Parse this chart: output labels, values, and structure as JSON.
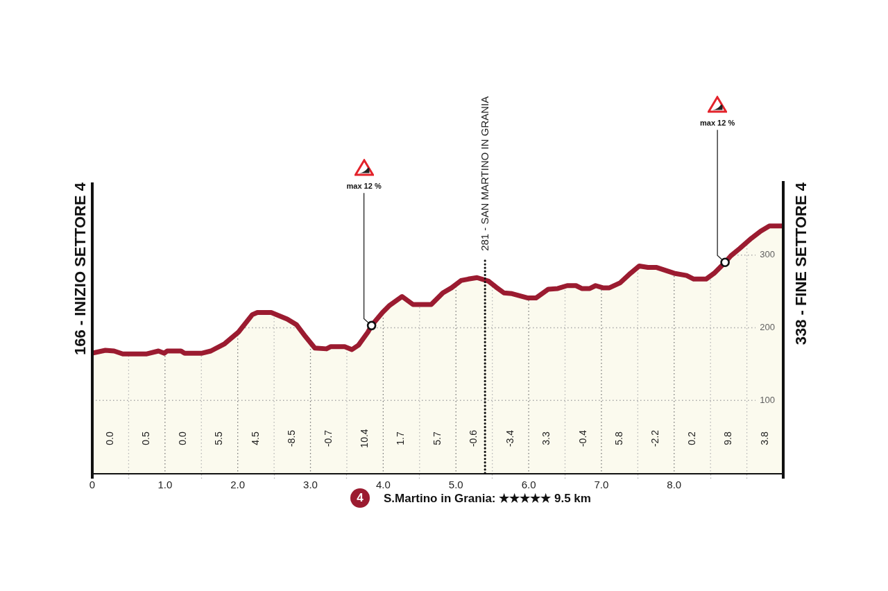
{
  "chart_data": {
    "type": "area",
    "title": "S.Martino in Grania: ★★★★★ 9.5 km",
    "x": [
      0,
      0.18,
      0.3,
      0.42,
      0.75,
      0.91,
      0.99,
      1.03,
      1.22,
      1.27,
      1.51,
      1.63,
      1.82,
      2.01,
      2.2,
      2.27,
      2.46,
      2.68,
      2.81,
      2.93,
      3.06,
      3.22,
      3.28,
      3.47,
      3.57,
      3.66,
      3.79,
      3.84,
      3.99,
      4.09,
      4.26,
      4.41,
      4.66,
      4.82,
      4.94,
      5.07,
      5.17,
      5.29,
      5.45,
      5.55,
      5.66,
      5.77,
      5.99,
      6.1,
      6.27,
      6.4,
      6.53,
      6.65,
      6.73,
      6.84,
      6.92,
      7.02,
      7.11,
      7.26,
      7.4,
      7.52,
      7.64,
      7.76,
      8.0,
      8.17,
      8.27,
      8.44,
      8.55,
      8.7,
      8.78,
      8.9,
      9.06,
      9.19,
      9.31,
      9.5
    ],
    "values": [
      165,
      169,
      168,
      164,
      164,
      168,
      165,
      168,
      168,
      165,
      165,
      168,
      178,
      194,
      218,
      221,
      221,
      212,
      204,
      188,
      172,
      171,
      174,
      174,
      170,
      176,
      194,
      203,
      221,
      231,
      243,
      232,
      232,
      248,
      255,
      265,
      267,
      269,
      264,
      256,
      248,
      247,
      241,
      241,
      253,
      254,
      258,
      258,
      254,
      254,
      258,
      255,
      255,
      262,
      275,
      285,
      283,
      283,
      275,
      272,
      267,
      267,
      275,
      290,
      299,
      309,
      323,
      333,
      340,
      340
    ],
    "color": "#9b1b30",
    "xlim": [
      0,
      9.5
    ],
    "xticks": [
      {
        "value": 0,
        "label": "0"
      },
      {
        "value": 0.5,
        "label": null
      },
      {
        "value": 1,
        "label": "1.0"
      },
      {
        "value": 1.5,
        "label": null
      },
      {
        "value": 2,
        "label": "2.0"
      },
      {
        "value": 2.5,
        "label": null
      },
      {
        "value": 3,
        "label": "3.0"
      },
      {
        "value": 3.5,
        "label": null
      },
      {
        "value": 4,
        "label": "4.0"
      },
      {
        "value": 4.5,
        "label": null
      },
      {
        "value": 5,
        "label": "5.0"
      },
      {
        "value": 5.5,
        "label": null
      },
      {
        "value": 6,
        "label": "6.0"
      },
      {
        "value": 6.5,
        "label": null
      },
      {
        "value": 7,
        "label": "7.0"
      },
      {
        "value": 7.5,
        "label": null
      },
      {
        "value": 8,
        "label": "8.0"
      },
      {
        "value": 8.5,
        "label": null
      },
      {
        "value": 9,
        "label": null
      }
    ],
    "ylim": [
      0,
      400
    ],
    "yticks": [
      100,
      200,
      300
    ],
    "grid": true,
    "ref_lines": [
      {
        "axis": "x",
        "value": 5.4,
        "label": "281 - SAN MARTINO IN GRANIA",
        "line_style": "dotted"
      }
    ],
    "annotations": [
      "166 - INIZIO SETTORE 4",
      "338 - FINE SETTORE 4",
      {
        "text": "max 12 %",
        "x": 3.84,
        "y": 203
      },
      {
        "text": "max 12 %",
        "x": 8.7,
        "y": 290
      },
      "0.0",
      "0.5",
      "0.0",
      "5.5",
      "4.5",
      "-8.5",
      "-0.7",
      "10.4",
      "1.7",
      "5.7",
      "-0.6",
      "-3.4",
      "3.3",
      "-0.4",
      "5.8",
      "-2.2",
      "0.2",
      "9.8",
      "3.8",
      "4"
    ]
  }
}
